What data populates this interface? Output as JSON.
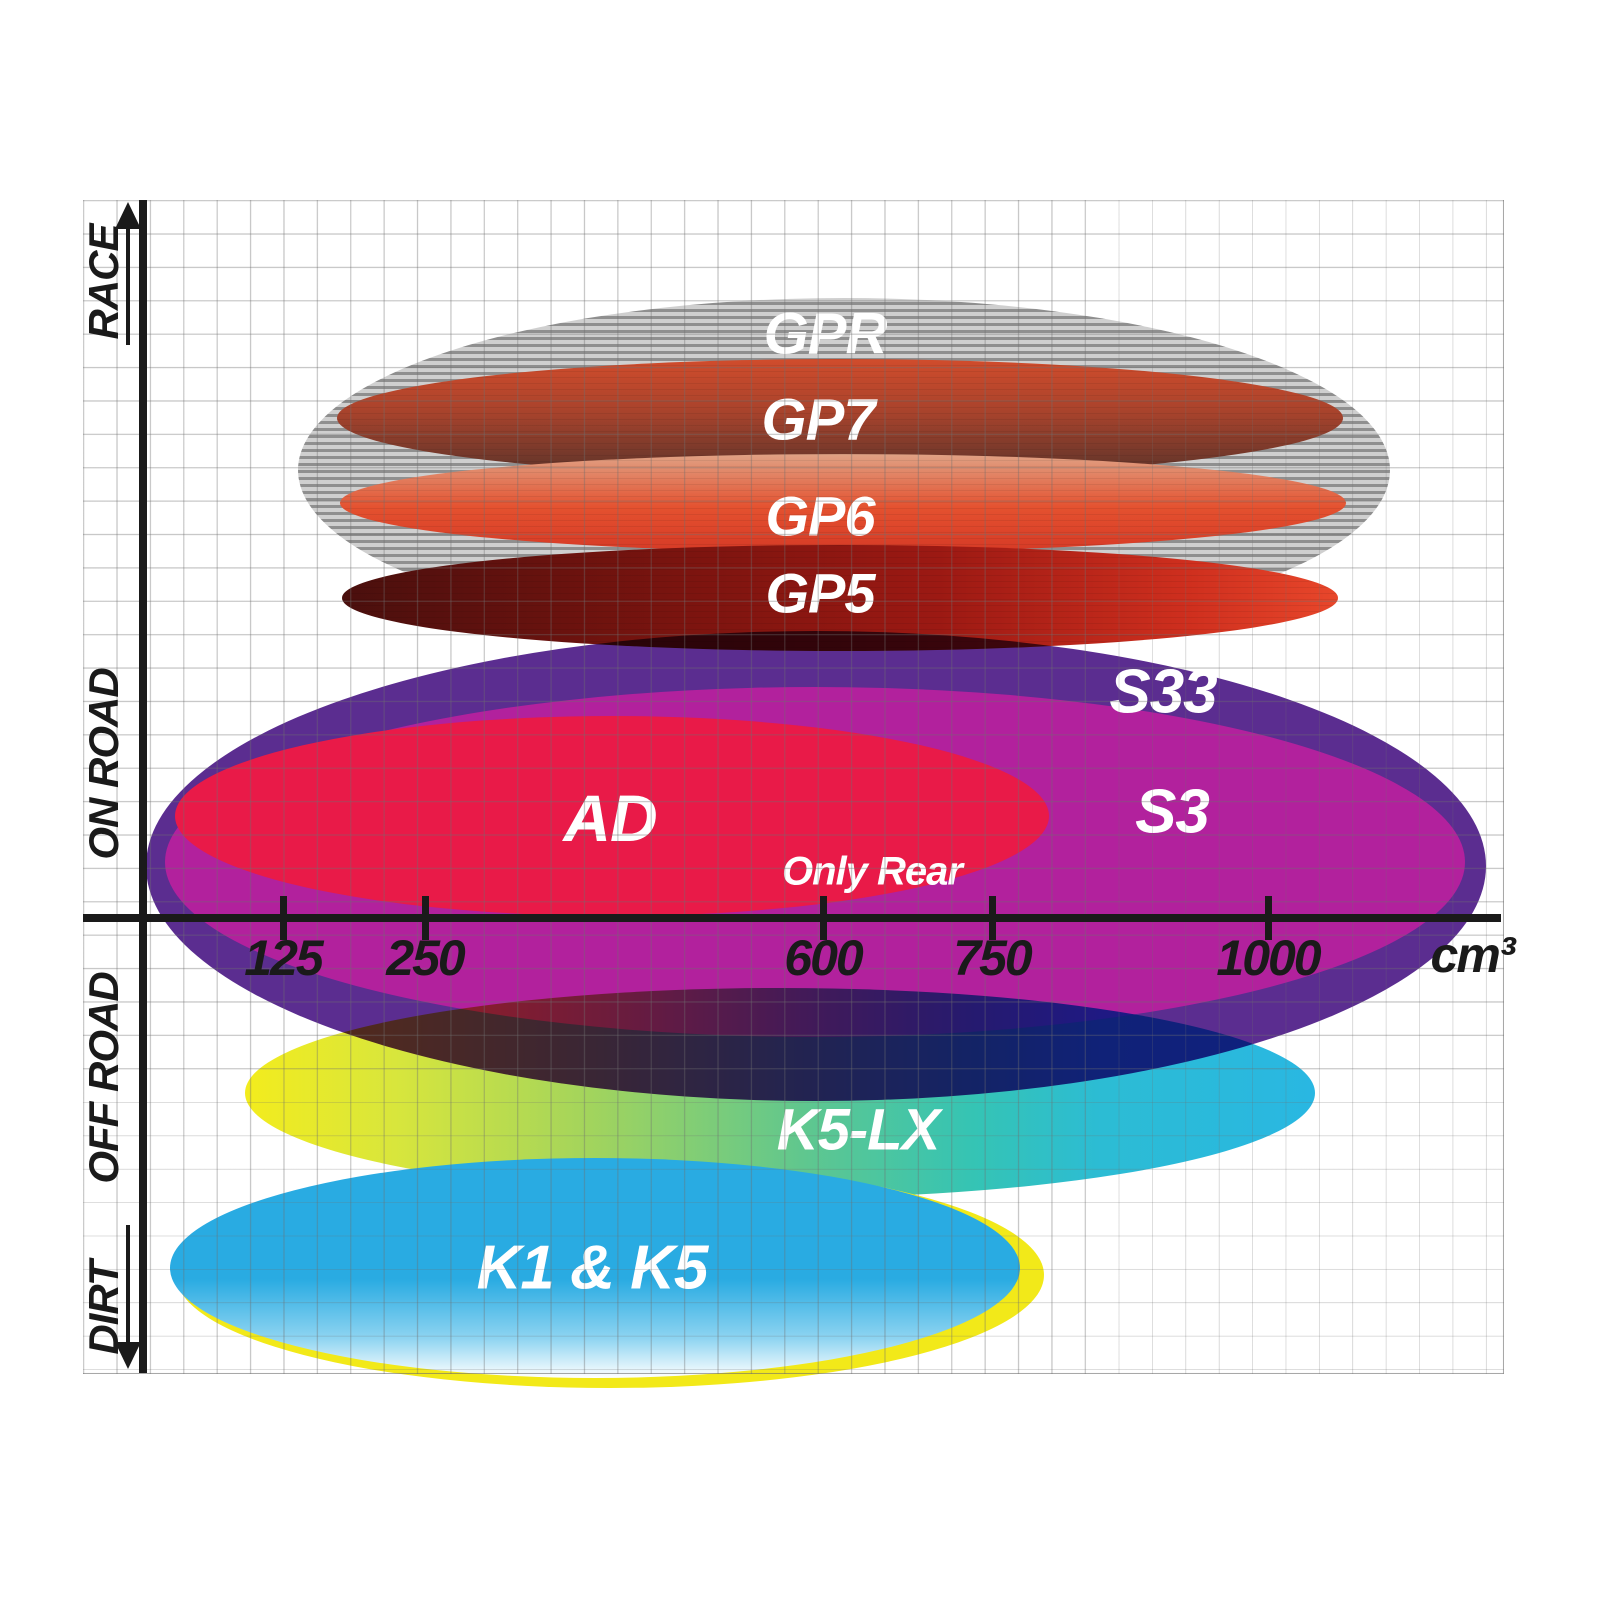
{
  "chart_data": {
    "type": "ellipse-overlap-diagram",
    "description": "Brake pad compound positioning chart: elliptical regions show each compound's engine-displacement coverage (cm³, x-axis) across usage zones (y-axis: RACE, ON ROAD, OFF ROAD, DIRT).",
    "x_axis": {
      "unit_label": "cm³",
      "ticks": [
        "125",
        "250",
        "600",
        "750",
        "1000"
      ],
      "tick_values": [
        125,
        250,
        600,
        750,
        1000
      ]
    },
    "y_axis_zones": [
      "RACE",
      "ON ROAD",
      "OFF ROAD",
      "DIRT"
    ],
    "grid": true,
    "series": [
      {
        "name": "GPR",
        "zone": "RACE",
        "approx_range_cm3": [
          125,
          1050
        ],
        "fill": "grey horizontal stripes",
        "stripe_light": "#cfcfcf",
        "stripe_dark": "#8f8f8f",
        "label_color": "#ffffff"
      },
      {
        "name": "GP7",
        "zone": "RACE",
        "approx_range_cm3": [
          170,
          1070
        ],
        "fill": "red-to-dark-brown vertical gradient",
        "color_top": "#d14c2c",
        "color_bottom": "#5a332a",
        "label_color": "#ffffff"
      },
      {
        "name": "GP6",
        "zone": "RACE",
        "approx_range_cm3": [
          175,
          1070
        ],
        "fill": "salmon-to-red vertical gradient",
        "color_top": "#e0a285",
        "color_bottom": "#d63a26",
        "label_color": "#ffffff"
      },
      {
        "name": "GP5",
        "zone": "RACE",
        "approx_range_cm3": [
          175,
          1065
        ],
        "fill": "dark-maroon-to-red horizontal gradient",
        "color_left": "#4a0f0d",
        "color_right": "#e8472b",
        "label_color": "#ffffff"
      },
      {
        "name": "S33",
        "zone": "ON ROAD",
        "approx_range_cm3": [
          100,
          1180
        ],
        "fill": "#5b2d90",
        "label_color": "#ffffff"
      },
      {
        "name": "S3",
        "zone": "ON ROAD",
        "approx_range_cm3": [
          100,
          1160
        ],
        "fill": "#b2219d",
        "label_color": "#ffffff"
      },
      {
        "name": "AD",
        "zone": "ON ROAD",
        "approx_range_cm3": [
          100,
          800
        ],
        "fill": "#e91a48",
        "note": "Only Rear",
        "label_color": "#ffffff"
      },
      {
        "name": "K5-LX",
        "zone": "OFF ROAD",
        "approx_range_cm3": [
          100,
          1040
        ],
        "fill": "yellow-to-cyan horizontal gradient",
        "color_left": "#f3ec1d",
        "color_mid": "#60c78e",
        "color_right": "#29b7e2",
        "label_color": "#ffffff"
      },
      {
        "name": "K1 & K5",
        "zone": "DIRT",
        "approx_range_cm3": [
          100,
          775
        ],
        "fill": "#29abe2",
        "backing_outline": "#f2e919",
        "label_color": "#ffffff"
      }
    ]
  },
  "axis_color": "#1a1a1a",
  "grid_color": "#c9c9c9",
  "background_color": "#ffffff"
}
